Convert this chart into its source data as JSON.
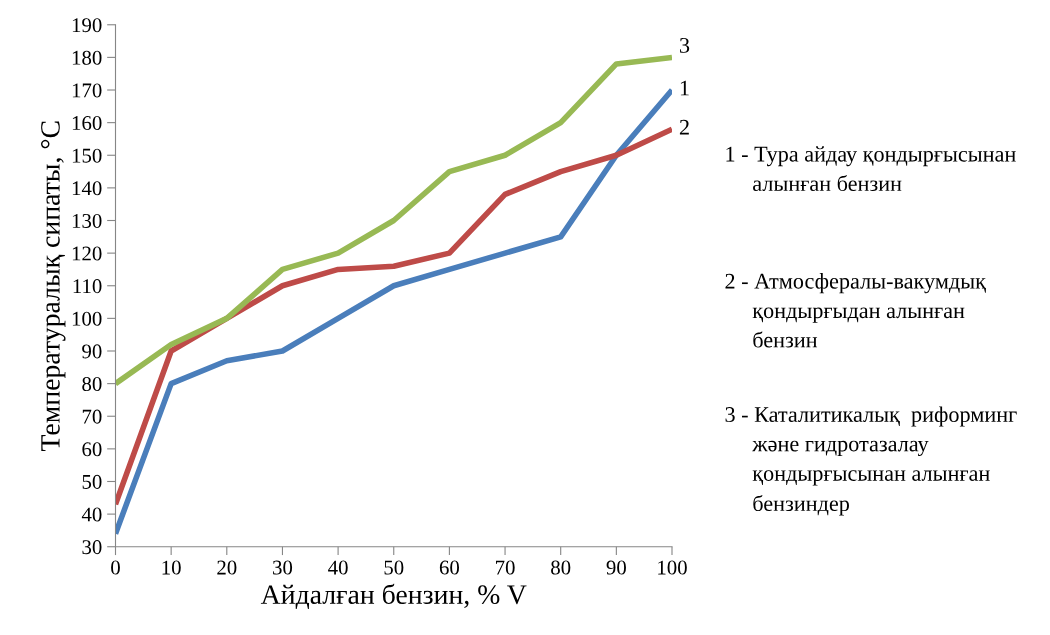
{
  "chart_data": {
    "type": "line",
    "xlabel": "Айдалған бензин, % V",
    "ylabel": "Температуралық сипаты, °C",
    "x": [
      0,
      10,
      20,
      30,
      40,
      50,
      60,
      70,
      80,
      90,
      100
    ],
    "series": [
      {
        "name": "1",
        "color": "#4a7ebb",
        "values": [
          34,
          80,
          87,
          90,
          100,
          110,
          115,
          120,
          125,
          150,
          170
        ]
      },
      {
        "name": "2",
        "color": "#be4b48",
        "values": [
          43,
          90,
          100,
          110,
          115,
          116,
          120,
          138,
          145,
          150,
          158
        ]
      },
      {
        "name": "3",
        "color": "#98b954",
        "values": [
          80,
          92,
          100,
          115,
          120,
          130,
          145,
          150,
          160,
          178,
          180
        ]
      }
    ],
    "xlim": [
      0,
      100
    ],
    "xticks": [
      0,
      10,
      20,
      30,
      40,
      50,
      60,
      70,
      80,
      90,
      100
    ],
    "ylim": [
      30,
      190
    ],
    "yticks": [
      30,
      40,
      50,
      60,
      70,
      80,
      90,
      100,
      110,
      120,
      130,
      140,
      150,
      160,
      170,
      180,
      190
    ],
    "grid": false,
    "legend": false,
    "marker": "none",
    "line_style": "solid",
    "annotations": [
      "1 - Тура айдау қондырғысынан\n     алынған бензин",
      "2 - Атмосфералы-вакумдық\n     қондырғыдан алынған\n     бензин",
      "3 - Каталитикалық  риформинг\n     және гидротазалау\n     қондырғысынан алынған\n     бензиндер"
    ]
  }
}
